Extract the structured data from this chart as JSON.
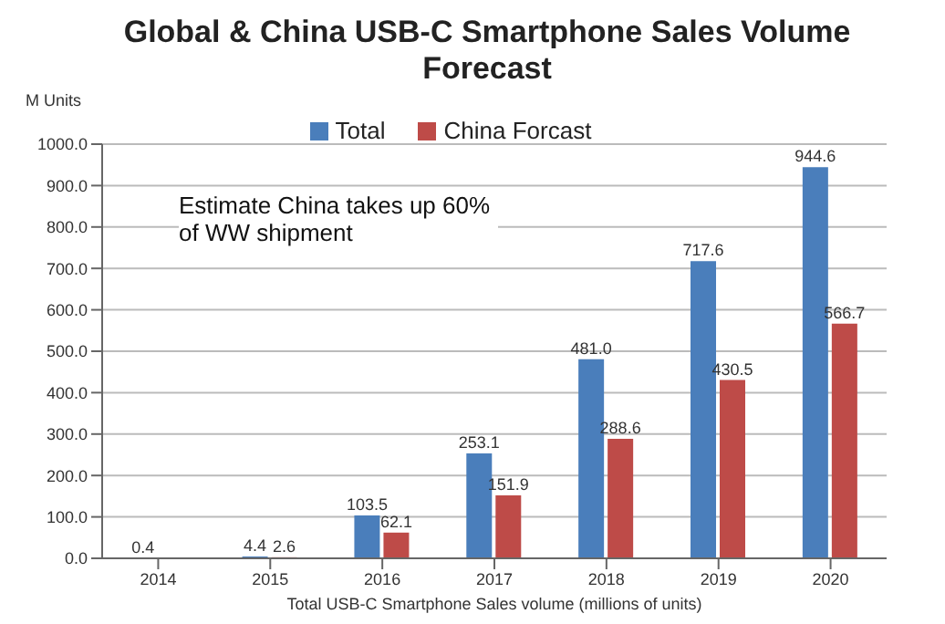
{
  "chart_data": {
    "type": "bar",
    "title": "Global & China USB-C Smartphone Sales Volume Forecast",
    "ylabel": "M Units",
    "xlabel": "Total USB-C Smartphone Sales volume (millions of units)",
    "annotations": [
      "Estimate China takes up 60% of WW shipment"
    ],
    "categories": [
      "2014",
      "2015",
      "2016",
      "2017",
      "2018",
      "2019",
      "2020"
    ],
    "series": [
      {
        "name": "Total",
        "color": "#4a7ebb",
        "values": [
          0.4,
          4.4,
          103.5,
          253.1,
          481.0,
          717.6,
          944.6
        ],
        "value_labels": [
          "0.4",
          "4.4",
          "103.5",
          "253.1",
          "481.0",
          "717.6",
          "944.6"
        ]
      },
      {
        "name": "China Forcast",
        "color": "#be4b48",
        "values": [
          null,
          2.6,
          62.1,
          151.9,
          288.6,
          430.5,
          566.7
        ],
        "value_labels": [
          null,
          "2.6",
          "62.1",
          "151.9",
          "288.6",
          "430.5",
          "566.7"
        ]
      }
    ],
    "ylim": [
      0,
      1000
    ],
    "yticks": [
      {
        "value": 0,
        "label": "0.0"
      },
      {
        "value": 100,
        "label": "100.0"
      },
      {
        "value": 200,
        "label": "200.0"
      },
      {
        "value": 300,
        "label": "300.0"
      },
      {
        "value": 400,
        "label": "400.0"
      },
      {
        "value": 500,
        "label": "500.0"
      },
      {
        "value": 600,
        "label": "600.0"
      },
      {
        "value": 700,
        "label": "700.0"
      },
      {
        "value": 800,
        "label": "800.0"
      },
      {
        "value": 900,
        "label": "900.0"
      },
      {
        "value": 1000,
        "label": "1000.0"
      }
    ],
    "grid": "y",
    "legend": "top"
  }
}
